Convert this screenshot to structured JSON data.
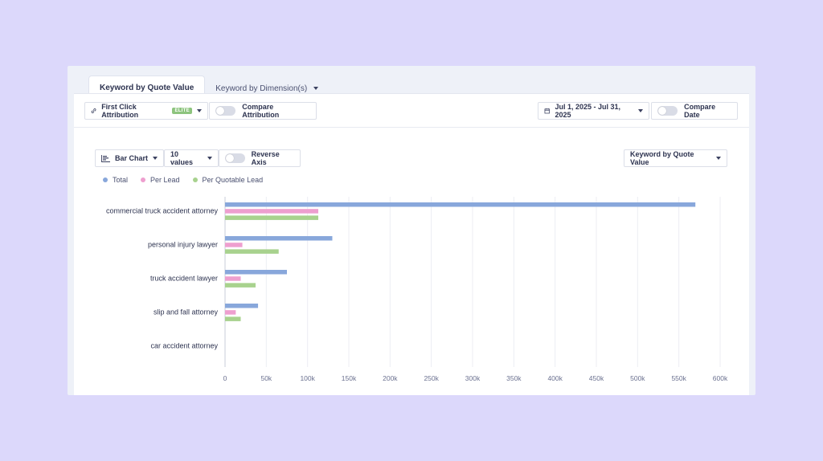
{
  "tabs": [
    {
      "label": "Keyword by Quote Value",
      "active": true
    },
    {
      "label": "Keyword by Dimension(s)",
      "active": false
    }
  ],
  "toolbar": {
    "attribution_label": "First Click Attribution",
    "elite_badge": "ELITE",
    "compare_attribution_label": "Compare Attribution",
    "date_range": "Jul 1, 2025 - Jul 31, 2025",
    "compare_date_label": "Compare Date"
  },
  "chart_controls": {
    "chart_type": "Bar Chart",
    "values_count": "10 values",
    "reverse_axis_label": "Reverse Axis",
    "metric_select": "Keyword by Quote Value"
  },
  "icons": {
    "link": "link-icon",
    "calendar": "calendar-icon",
    "bar_chart": "bar-chart-icon"
  },
  "chart_data": {
    "type": "bar",
    "orientation": "horizontal",
    "categories": [
      "commercial truck accident attorney",
      "personal injury lawyer",
      "truck accident lawyer",
      "slip and fall attorney",
      "car accident attorney"
    ],
    "series": [
      {
        "name": "Total",
        "color": "#88a7db",
        "values": [
          570000,
          130000,
          75000,
          40000,
          0
        ]
      },
      {
        "name": "Per Lead",
        "color": "#ee9fcf",
        "values": [
          113000,
          21000,
          19000,
          13000,
          0
        ]
      },
      {
        "name": "Per Quotable Lead",
        "color": "#a8d28e",
        "values": [
          113000,
          65000,
          37000,
          19000,
          0
        ]
      }
    ],
    "xlim": [
      0,
      600000
    ],
    "xticks": [
      "0",
      "50k",
      "100k",
      "150k",
      "200k",
      "250k",
      "300k",
      "350k",
      "400k",
      "450k",
      "500k",
      "550k",
      "600k"
    ],
    "grid": true,
    "legend": "top-left"
  }
}
